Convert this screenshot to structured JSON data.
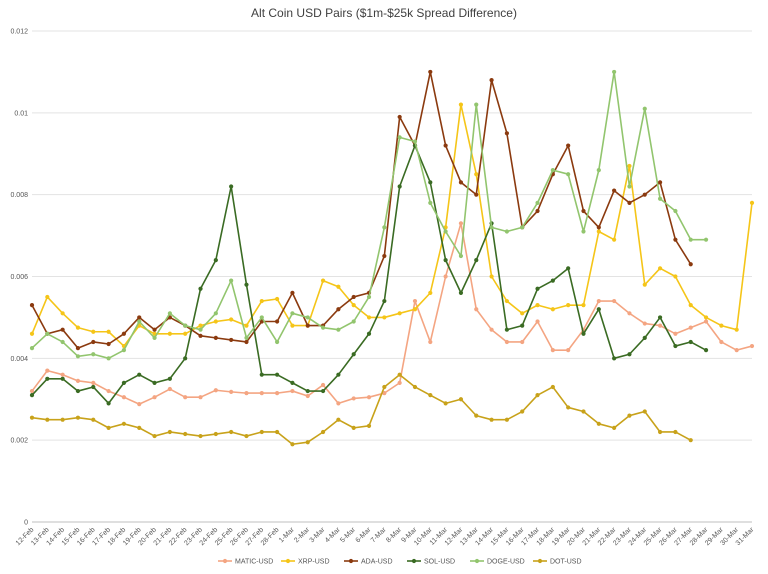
{
  "chart_data": {
    "type": "line",
    "title": "Alt Coin USD Pairs ($1m-$25k Spread Difference)",
    "xlabel": "",
    "ylabel": "",
    "ylim": [
      0,
      0.012
    ],
    "yticks": [
      "0",
      "0.002",
      "0.004",
      "0.006",
      "0.008",
      "0.01",
      "0.012"
    ],
    "ytick_values": [
      0,
      0.002,
      0.004,
      0.006,
      0.008,
      0.01,
      0.012
    ],
    "grid": "horizontal",
    "legend_position": "bottom",
    "categories": [
      "12-Feb",
      "13-Feb",
      "14-Feb",
      "15-Feb",
      "16-Feb",
      "17-Feb",
      "18-Feb",
      "19-Feb",
      "20-Feb",
      "21-Feb",
      "22-Feb",
      "23-Feb",
      "24-Feb",
      "25-Feb",
      "26-Feb",
      "27-Feb",
      "28-Feb",
      "1-Mar",
      "2-Mar",
      "3-Mar",
      "4-Mar",
      "5-Mar",
      "6-Mar",
      "7-Mar",
      "8-Mar",
      "9-Mar",
      "10-Mar",
      "11-Mar",
      "12-Mar",
      "13-Mar",
      "14-Mar",
      "15-Mar",
      "16-Mar",
      "17-Mar",
      "18-Mar",
      "19-Mar",
      "20-Mar",
      "21-Mar",
      "22-Mar",
      "23-Mar",
      "24-Mar",
      "25-Mar",
      "26-Mar",
      "27-Mar",
      "28-Mar",
      "29-Mar",
      "30-Mar",
      "31-Mar"
    ],
    "series": [
      {
        "name": "MATIC-USD",
        "color": "#f4a582",
        "values": [
          0.0032,
          0.0037,
          0.0036,
          0.00345,
          0.0034,
          0.0032,
          0.00305,
          0.00288,
          0.00305,
          0.00325,
          0.00305,
          0.00305,
          0.00322,
          0.00318,
          0.00315,
          0.00315,
          0.00315,
          0.0032,
          0.00308,
          0.00335,
          0.0029,
          0.00302,
          0.00305,
          0.00315,
          0.0034,
          0.0054,
          0.0044,
          0.006,
          0.0073,
          0.0052,
          0.0047,
          0.0044,
          0.0044,
          0.0049,
          0.0042,
          0.0042,
          0.0047,
          0.0054,
          0.0054,
          0.0051,
          0.00485,
          0.0048,
          0.0046,
          0.00475,
          0.0049,
          0.0044,
          0.0042,
          0.0043
        ]
      },
      {
        "name": "XRP-USD",
        "color": "#f5c518",
        "values": [
          0.0046,
          0.0055,
          0.0051,
          0.00475,
          0.00465,
          0.00465,
          0.0043,
          0.0048,
          0.0046,
          0.0046,
          0.0046,
          0.0048,
          0.0049,
          0.00495,
          0.0048,
          0.0054,
          0.00545,
          0.0048,
          0.0048,
          0.0059,
          0.00575,
          0.0053,
          0.005,
          0.005,
          0.0051,
          0.0052,
          0.0056,
          0.0072,
          0.0102,
          0.0085,
          0.006,
          0.0054,
          0.0051,
          0.0053,
          0.0052,
          0.0053,
          0.0053,
          0.0071,
          0.0069,
          0.0087,
          0.0058,
          0.0062,
          0.006,
          0.0053,
          0.005,
          0.0048,
          0.0047,
          0.0078
        ]
      },
      {
        "name": "ADA-USD",
        "color": "#8b3a0f",
        "values": [
          0.0053,
          0.0046,
          0.0047,
          0.00425,
          0.0044,
          0.00435,
          0.0046,
          0.005,
          0.0047,
          0.005,
          0.0048,
          0.00455,
          0.0045,
          0.00445,
          0.0044,
          0.0049,
          0.0049,
          0.0056,
          0.0048,
          0.0048,
          0.0052,
          0.0055,
          0.0056,
          0.0065,
          0.0099,
          0.0092,
          0.011,
          0.0092,
          0.0083,
          0.008,
          0.0108,
          0.0095,
          0.0072,
          0.0076,
          0.0085,
          0.0092,
          0.0076,
          0.0072,
          0.0081,
          0.0078,
          0.008,
          0.0083,
          0.0069,
          0.0063,
          null,
          null,
          null,
          null
        ]
      },
      {
        "name": "SOL-USD",
        "color": "#3a6b23",
        "values": [
          0.0031,
          0.0035,
          0.0035,
          0.0032,
          0.0033,
          0.0029,
          0.0034,
          0.0036,
          0.0034,
          0.0035,
          0.004,
          0.0057,
          0.0064,
          0.0082,
          0.0058,
          0.0036,
          0.0036,
          0.0034,
          0.0032,
          0.0032,
          0.0036,
          0.0041,
          0.0046,
          0.0054,
          0.0082,
          0.0092,
          0.0083,
          0.0064,
          0.0056,
          0.0064,
          0.0073,
          0.0047,
          0.0048,
          0.0057,
          0.0059,
          0.0062,
          0.0046,
          0.0052,
          0.004,
          0.0041,
          0.0045,
          0.005,
          0.0043,
          0.0044,
          0.0042,
          null,
          null,
          null
        ]
      },
      {
        "name": "DOGE-USD",
        "color": "#92c56e",
        "values": [
          0.00425,
          0.0046,
          0.0044,
          0.00405,
          0.0041,
          0.004,
          0.0042,
          0.0049,
          0.0045,
          0.0051,
          0.0048,
          0.0047,
          0.0051,
          0.0059,
          0.0045,
          0.005,
          0.0044,
          0.0051,
          0.005,
          0.00475,
          0.0047,
          0.0049,
          0.0055,
          0.0072,
          0.0094,
          0.0093,
          0.0078,
          0.0071,
          0.0065,
          0.0102,
          0.0072,
          0.0071,
          0.0072,
          0.0078,
          0.0086,
          0.0085,
          0.0071,
          0.0086,
          0.011,
          0.0082,
          0.0101,
          0.0079,
          0.0076,
          0.0069,
          0.0069,
          null,
          null,
          null
        ]
      },
      {
        "name": "DOT-USD",
        "color": "#c8a21a",
        "values": [
          0.00255,
          0.0025,
          0.0025,
          0.00255,
          0.0025,
          0.0023,
          0.0024,
          0.0023,
          0.0021,
          0.0022,
          0.00215,
          0.0021,
          0.00215,
          0.0022,
          0.0021,
          0.0022,
          0.0022,
          0.0019,
          0.00195,
          0.0022,
          0.0025,
          0.0023,
          0.00235,
          0.0033,
          0.0036,
          0.0033,
          0.0031,
          0.0029,
          0.003,
          0.0026,
          0.0025,
          0.0025,
          0.0027,
          0.0031,
          0.0033,
          0.0028,
          0.0027,
          0.0024,
          0.0023,
          0.0026,
          0.0027,
          0.0022,
          0.0022,
          0.002,
          null,
          null,
          null,
          null
        ]
      }
    ]
  }
}
